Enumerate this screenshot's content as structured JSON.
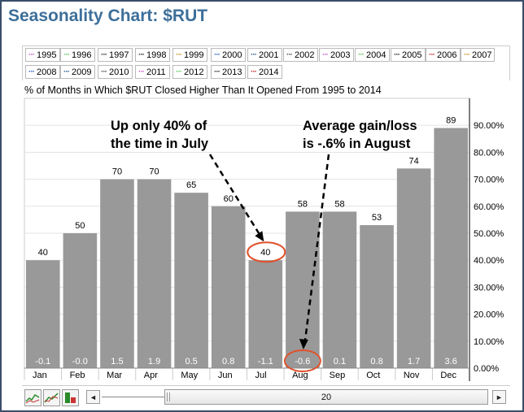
{
  "title": "Seasonality Chart: $RUT",
  "legend": {
    "items": [
      {
        "label": "1995",
        "color": "#cc66cc"
      },
      {
        "label": "1996",
        "color": "#66cc66"
      },
      {
        "label": "1997",
        "color": "#333333"
      },
      {
        "label": "1998",
        "color": "#333333"
      },
      {
        "label": "1999",
        "color": "#cc9933"
      },
      {
        "label": "2000",
        "color": "#3366cc"
      },
      {
        "label": "2001",
        "color": "#336699"
      },
      {
        "label": "2002",
        "color": "#555555"
      },
      {
        "label": "2003",
        "color": "#cc66cc"
      },
      {
        "label": "2004",
        "color": "#66cc66"
      },
      {
        "label": "2005",
        "color": "#333333"
      },
      {
        "label": "2006",
        "color": "#cc3333"
      },
      {
        "label": "2007",
        "color": "#cc9933"
      },
      {
        "label": "2008",
        "color": "#3366cc"
      },
      {
        "label": "2009",
        "color": "#336699"
      },
      {
        "label": "2010",
        "color": "#555555"
      },
      {
        "label": "2011",
        "color": "#cc66cc"
      },
      {
        "label": "2012",
        "color": "#66cc66"
      },
      {
        "label": "2013",
        "color": "#333333"
      },
      {
        "label": "2014",
        "color": "#cc3333"
      }
    ]
  },
  "subtitle": "% of Months in Which $RUT Closed Higher Than It Opened From 1995 to 2014",
  "chart_data": {
    "type": "bar",
    "categories": [
      "Jan",
      "Feb",
      "Mar",
      "Apr",
      "May",
      "Jun",
      "Jul",
      "Aug",
      "Sep",
      "Oct",
      "Nov",
      "Dec"
    ],
    "values": [
      40,
      50,
      70,
      70,
      65,
      60,
      40,
      58,
      58,
      53,
      74,
      89
    ],
    "avg_gain": [
      "-0.1",
      "-0.0",
      "1.5",
      "1.9",
      "0.5",
      "0.8",
      "-1.1",
      "-0.6",
      "0.1",
      "0.8",
      "1.7",
      "3.6"
    ],
    "ylim": [
      0,
      100
    ],
    "yticks": [
      "0.00%",
      "10.00%",
      "20.00%",
      "30.00%",
      "40.00%",
      "50.00%",
      "60.00%",
      "70.00%",
      "80.00%",
      "90.00%"
    ],
    "grid": true,
    "bar_color": "#999999",
    "annotations": [
      {
        "text_lines": [
          "Up only 40% of",
          "the time in July"
        ],
        "target_category": "Jul",
        "target": "bar-label"
      },
      {
        "text_lines": [
          "Average gain/loss",
          "is -.6% in August"
        ],
        "target_category": "Aug",
        "target": "gain-label"
      }
    ],
    "highlight_color": "#e0502a"
  },
  "controls": {
    "slider_value": "20",
    "left_arrow": "◄",
    "right_arrow": "►"
  }
}
